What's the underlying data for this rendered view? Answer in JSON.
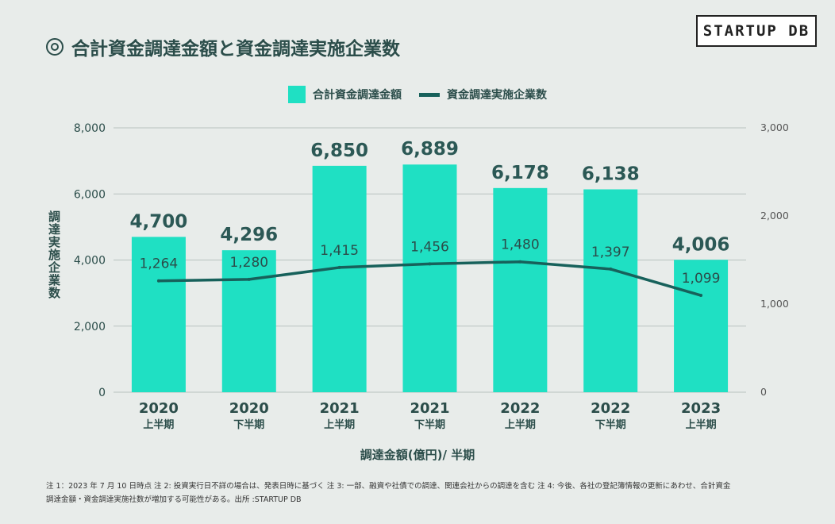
{
  "header": {
    "title": "合計資金調達金額と資金調達実施企業数",
    "logo_text": "STARTUP DB"
  },
  "legend": {
    "bar_label": "合計資金調達金額",
    "line_label": "資金調達実施企業数"
  },
  "colors": {
    "bar": "#1fe0c3",
    "line": "#17615b",
    "background": "#e8ecea",
    "text": "#2b4d4a"
  },
  "chart_data": {
    "type": "bar",
    "title": "合計資金調達金額と資金調達実施企業数",
    "categories": [
      {
        "year": "2020",
        "half": "上半期"
      },
      {
        "year": "2020",
        "half": "下半期"
      },
      {
        "year": "2021",
        "half": "上半期"
      },
      {
        "year": "2021",
        "half": "下半期"
      },
      {
        "year": "2022",
        "half": "上半期"
      },
      {
        "year": "2022",
        "half": "下半期"
      },
      {
        "year": "2023",
        "half": "上半期"
      }
    ],
    "series": [
      {
        "name": "合計資金調達金額",
        "type": "bar",
        "axis": "left",
        "values": [
          4700,
          4296,
          6850,
          6889,
          6178,
          6138,
          4006
        ],
        "labels": [
          "4,700",
          "4,296",
          "6,850",
          "6,889",
          "6,178",
          "6,138",
          "4,006"
        ]
      },
      {
        "name": "資金調達実施企業数",
        "type": "line",
        "axis": "right",
        "values": [
          1264,
          1280,
          1415,
          1456,
          1480,
          1397,
          1099
        ],
        "labels": [
          "1,264",
          "1,280",
          "1,415",
          "1,456",
          "1,480",
          "1,397",
          "1,099"
        ]
      }
    ],
    "xlabel": "調達金額(億円)/ 半期",
    "ylabel": "調達実施企業数",
    "ylim_left": [
      0,
      8000
    ],
    "yticks_left": [
      "0",
      "2,000",
      "4,000",
      "6,000",
      "8,000"
    ],
    "ylim_right": [
      0,
      3000
    ],
    "yticks_right": [
      "0",
      "1,000",
      "2,000",
      "3,000"
    ],
    "grid": true,
    "legend_position": "top-center"
  },
  "footnote": {
    "line1": "注 1：2023 年 7 月 10 日時点 注 2: 投資実行日不詳の場合は、発表日時に基づく 注 3: 一部、融資や社債での調達、関連会社からの調達を含む 注 4: 今後、各社の登記簿情報の更新にあわせ、合計資金",
    "line2": "調達金額・資金調達実施社数が増加する可能性がある。出所 :STARTUP DB"
  }
}
